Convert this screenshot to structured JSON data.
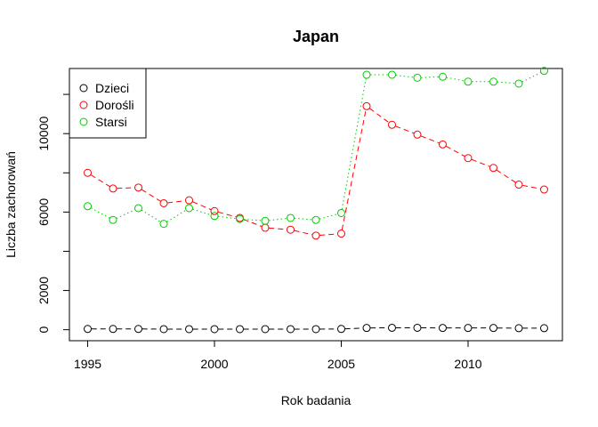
{
  "chart_data": {
    "type": "line",
    "title": "Japan",
    "xlabel": "Rok badania",
    "ylabel": "Liczba zachorowań",
    "x": [
      1995,
      1996,
      1997,
      1998,
      1999,
      2000,
      2001,
      2002,
      2003,
      2004,
      2005,
      2006,
      2007,
      2008,
      2009,
      2010,
      2011,
      2012,
      2013
    ],
    "x_ticks": [
      1995,
      2000,
      2005,
      2010
    ],
    "y_ticks": [
      0,
      2000,
      6000,
      10000
    ],
    "xlim": [
      1994.28,
      2013.72
    ],
    "ylim": [
      -560,
      13320
    ],
    "grid": false,
    "legend_position": "top-left",
    "series": [
      {
        "name": "Dzieci",
        "color": "#000000",
        "line_style": "dashed",
        "values": [
          40,
          40,
          40,
          30,
          30,
          30,
          30,
          30,
          30,
          30,
          40,
          90,
          100,
          100,
          90,
          90,
          90,
          80,
          80
        ]
      },
      {
        "name": "Dorośli",
        "color": "#ff0000",
        "line_style": "dashed",
        "values": [
          8000,
          7200,
          7250,
          6450,
          6600,
          6050,
          5700,
          5200,
          5100,
          4800,
          4900,
          11400,
          10450,
          9950,
          9450,
          8750,
          8250,
          7400,
          7150
        ]
      },
      {
        "name": "Starsi",
        "color": "#00cd00",
        "line_style": "dotted",
        "values": [
          6300,
          5600,
          6200,
          5400,
          6200,
          5800,
          5650,
          5550,
          5700,
          5600,
          5950,
          13000,
          13000,
          12850,
          12900,
          12650,
          12650,
          12550,
          13200
        ]
      }
    ]
  }
}
